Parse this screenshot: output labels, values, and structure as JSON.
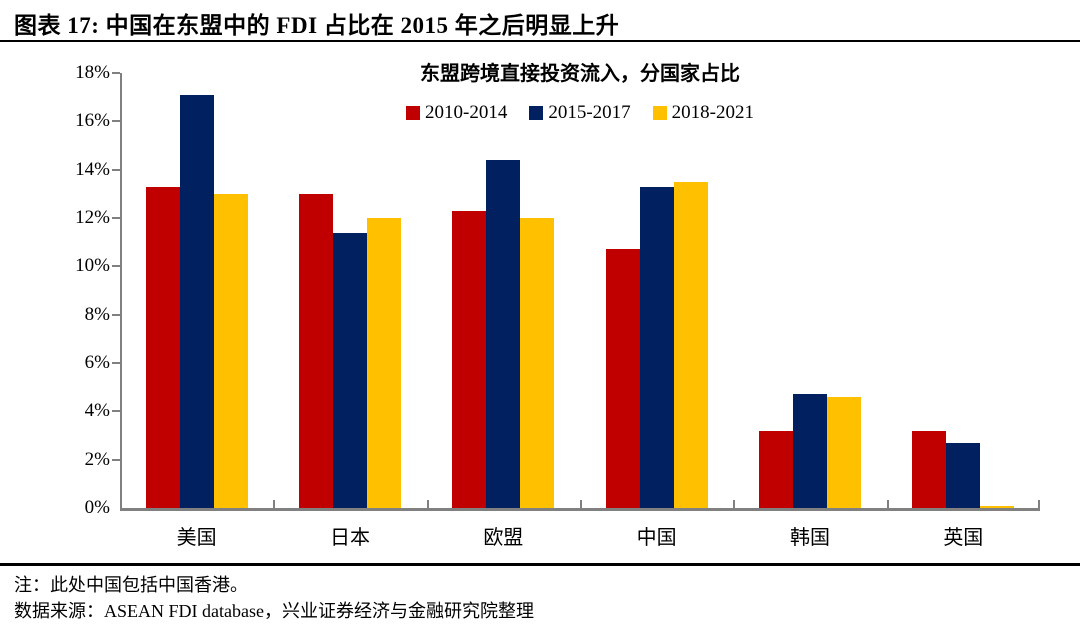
{
  "header": {
    "title": "图表 17: 中国在东盟中的 FDI 占比在 2015 年之后明显上升"
  },
  "chart_data": {
    "type": "bar",
    "title": "东盟跨境直接投资流入，分国家占比",
    "categories": [
      "美国",
      "日本",
      "欧盟",
      "中国",
      "韩国",
      "英国"
    ],
    "series": [
      {
        "name": "2010-2014",
        "color": "#C00000",
        "values": [
          13.3,
          13.0,
          12.3,
          10.7,
          3.2,
          3.2
        ]
      },
      {
        "name": "2015-2017",
        "color": "#002060",
        "values": [
          17.1,
          11.4,
          14.4,
          13.3,
          4.7,
          2.7
        ]
      },
      {
        "name": "2018-2021",
        "color": "#FFC000",
        "values": [
          13.0,
          12.0,
          12.0,
          13.5,
          4.6,
          0.07
        ]
      }
    ],
    "xlabel": "",
    "ylabel": "",
    "ylim": [
      0,
      18
    ],
    "ytick_step": 2,
    "ytick_suffix": "%",
    "legend_position": "top-center",
    "grid": false,
    "axis_color": "#808080"
  },
  "footer": {
    "note": "注：此处中国包括中国香港。",
    "source": "数据来源：ASEAN FDI database，兴业证券经济与金融研究院整理"
  }
}
